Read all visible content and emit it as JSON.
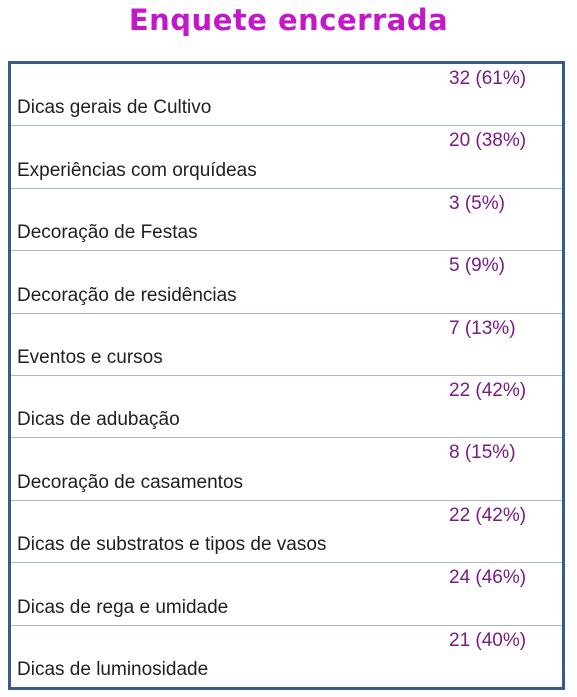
{
  "colors": {
    "title": "#c218c9",
    "value": "#7a1a87",
    "label": "#1f1f1f",
    "border": "#3b5b87"
  },
  "poll": {
    "title": "Enquete encerrada",
    "options": [
      {
        "label": "Dicas gerais de Cultivo",
        "result": "32 (61%)",
        "votes": 32,
        "percent": 61
      },
      {
        "label": "Experiências com orquídeas",
        "result": "20 (38%)",
        "votes": 20,
        "percent": 38
      },
      {
        "label": "Decoração de Festas",
        "result": "3 (5%)",
        "votes": 3,
        "percent": 5
      },
      {
        "label": "Decoração de residências",
        "result": "5 (9%)",
        "votes": 5,
        "percent": 9
      },
      {
        "label": "Eventos e cursos",
        "result": "7 (13%)",
        "votes": 7,
        "percent": 13
      },
      {
        "label": "Dicas de adubação",
        "result": "22 (42%)",
        "votes": 22,
        "percent": 42
      },
      {
        "label": "Decoração de casamentos",
        "result": "8 (15%)",
        "votes": 8,
        "percent": 15
      },
      {
        "label": "Dicas de substratos e tipos de vasos",
        "result": "22 (42%)",
        "votes": 22,
        "percent": 42
      },
      {
        "label": "Dicas de rega e umidade",
        "result": "24 (46%)",
        "votes": 24,
        "percent": 46
      },
      {
        "label": "Dicas de luminosidade",
        "result": "21 (40%)",
        "votes": 21,
        "percent": 40
      }
    ]
  }
}
